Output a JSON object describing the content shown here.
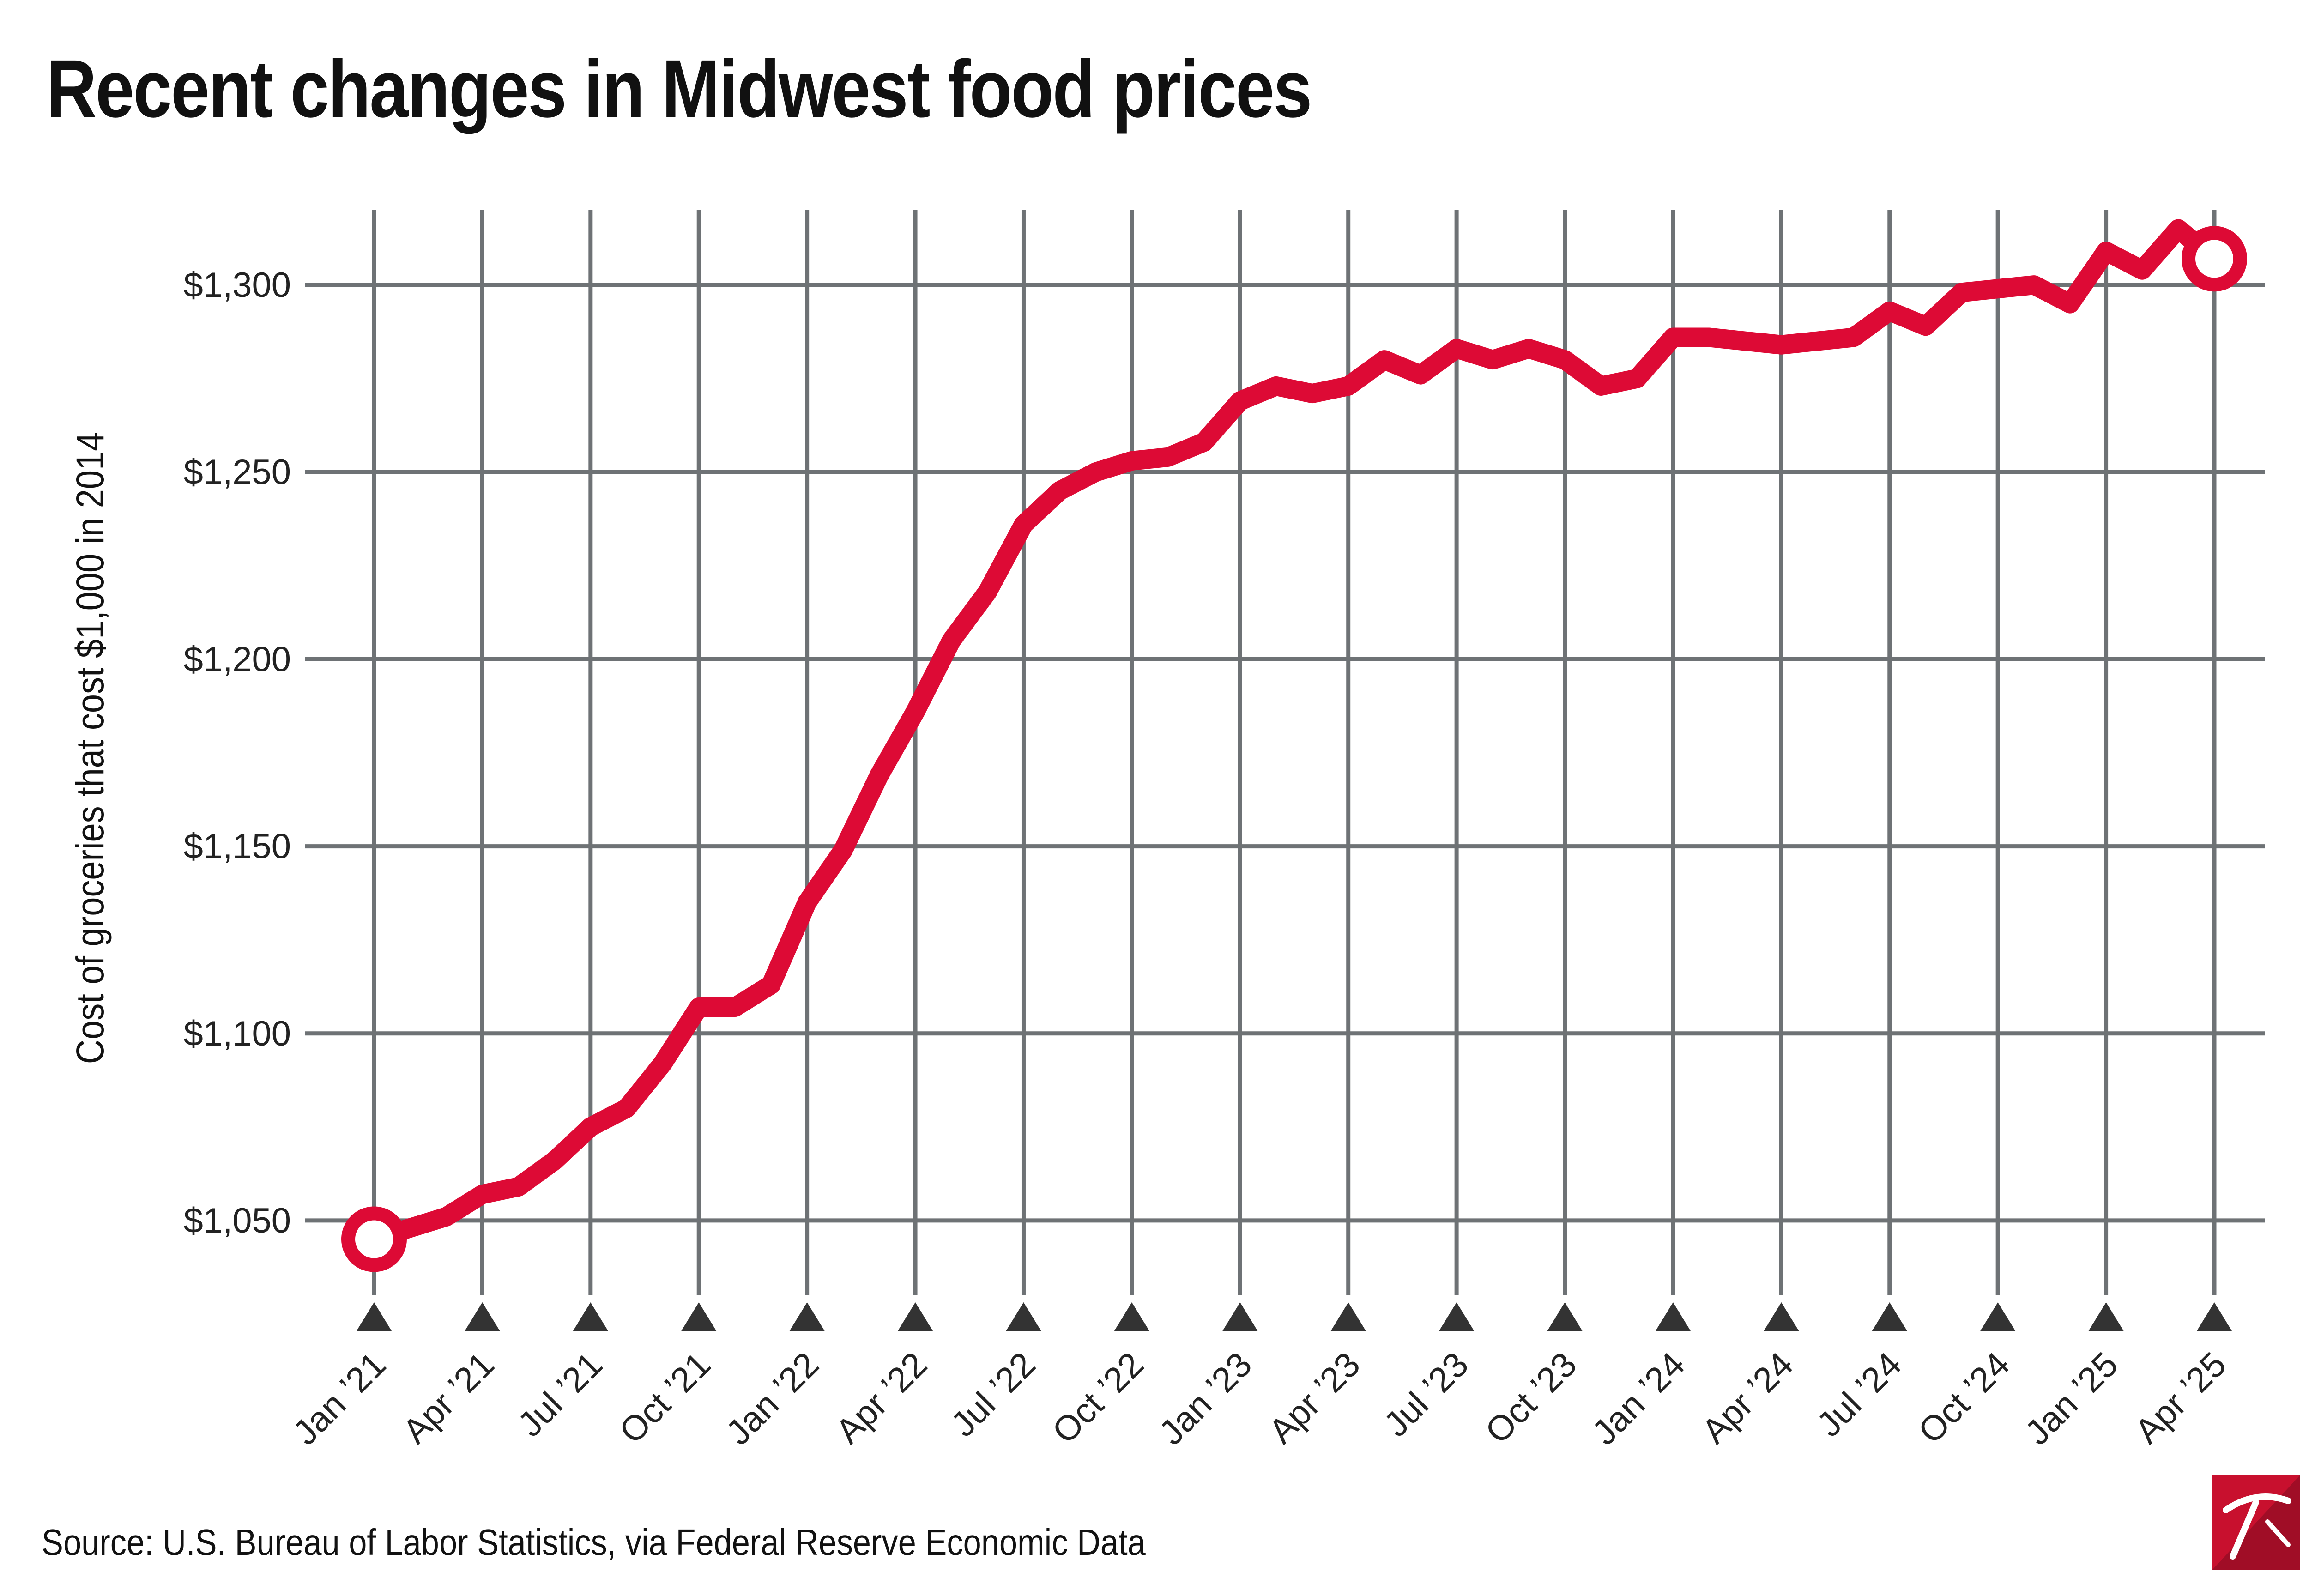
{
  "title": "Recent changes in Midwest food prices",
  "source": "Source: U.S. Bureau of Labor Statistics, via Federal Reserve Economic Data",
  "colors": {
    "line": "#dd0a35",
    "grid": "#6e7275",
    "marker": "#333333",
    "logo_red": "#c8102e"
  },
  "chart_data": {
    "type": "line",
    "title": "Recent changes in Midwest food prices",
    "xlabel": "",
    "ylabel": "Cost of groceries that cost $1,000 in 2014",
    "ylim": [
      1030,
      1320
    ],
    "grid": true,
    "y_ticks": [
      1050,
      1100,
      1150,
      1200,
      1250,
      1300
    ],
    "y_tick_labels": [
      "$1,050",
      "$1,100",
      "$1,150",
      "$1,200",
      "$1,250",
      "$1,300"
    ],
    "x_ticks": [
      0,
      3,
      6,
      9,
      12,
      15,
      18,
      21,
      24,
      27,
      30,
      33,
      36,
      39,
      42,
      45,
      48,
      51
    ],
    "x_tick_labels": [
      "Jan ’21",
      "Apr ’21",
      "Jul ’21",
      "Oct ’21",
      "Jan ’22",
      "Apr ’22",
      "Jul ’22",
      "Oct ’22",
      "Jan ’23",
      "Apr ’23",
      "Jul ’23",
      "Oct ’23",
      "Jan ’24",
      "Apr ’24",
      "Jul ’24",
      "Oct ’24",
      "Jan ’25",
      "Apr ’25"
    ],
    "series": [
      {
        "name": "Midwest food prices",
        "x": [
          0,
          1,
          2,
          3,
          4,
          5,
          6,
          7,
          8,
          9,
          10,
          11,
          12,
          13,
          14,
          15,
          16,
          17,
          18,
          19,
          20,
          21,
          22,
          23,
          24,
          25,
          26,
          27,
          28,
          29,
          30,
          31,
          32,
          33,
          34,
          35,
          36,
          37,
          38,
          39,
          40,
          41,
          42,
          43,
          44,
          45,
          46,
          47,
          48,
          49,
          50,
          51
        ],
        "values": [
          1045,
          1048,
          1051,
          1057,
          1059,
          1066,
          1075,
          1080,
          1092,
          1107,
          1107,
          1113,
          1135,
          1149,
          1169,
          1186,
          1205,
          1218,
          1236,
          1245,
          1250,
          1253,
          1254,
          1258,
          1269,
          1273,
          1271,
          1273,
          1280,
          1276,
          1283,
          1280,
          1283,
          1280,
          1273,
          1275,
          1286,
          1286,
          1285,
          1284,
          1285,
          1286,
          1293,
          1289,
          1298,
          1299,
          1300,
          1295,
          1309,
          1304,
          1315,
          1307
        ]
      }
    ],
    "endpoint_markers": [
      "first",
      "last"
    ]
  }
}
